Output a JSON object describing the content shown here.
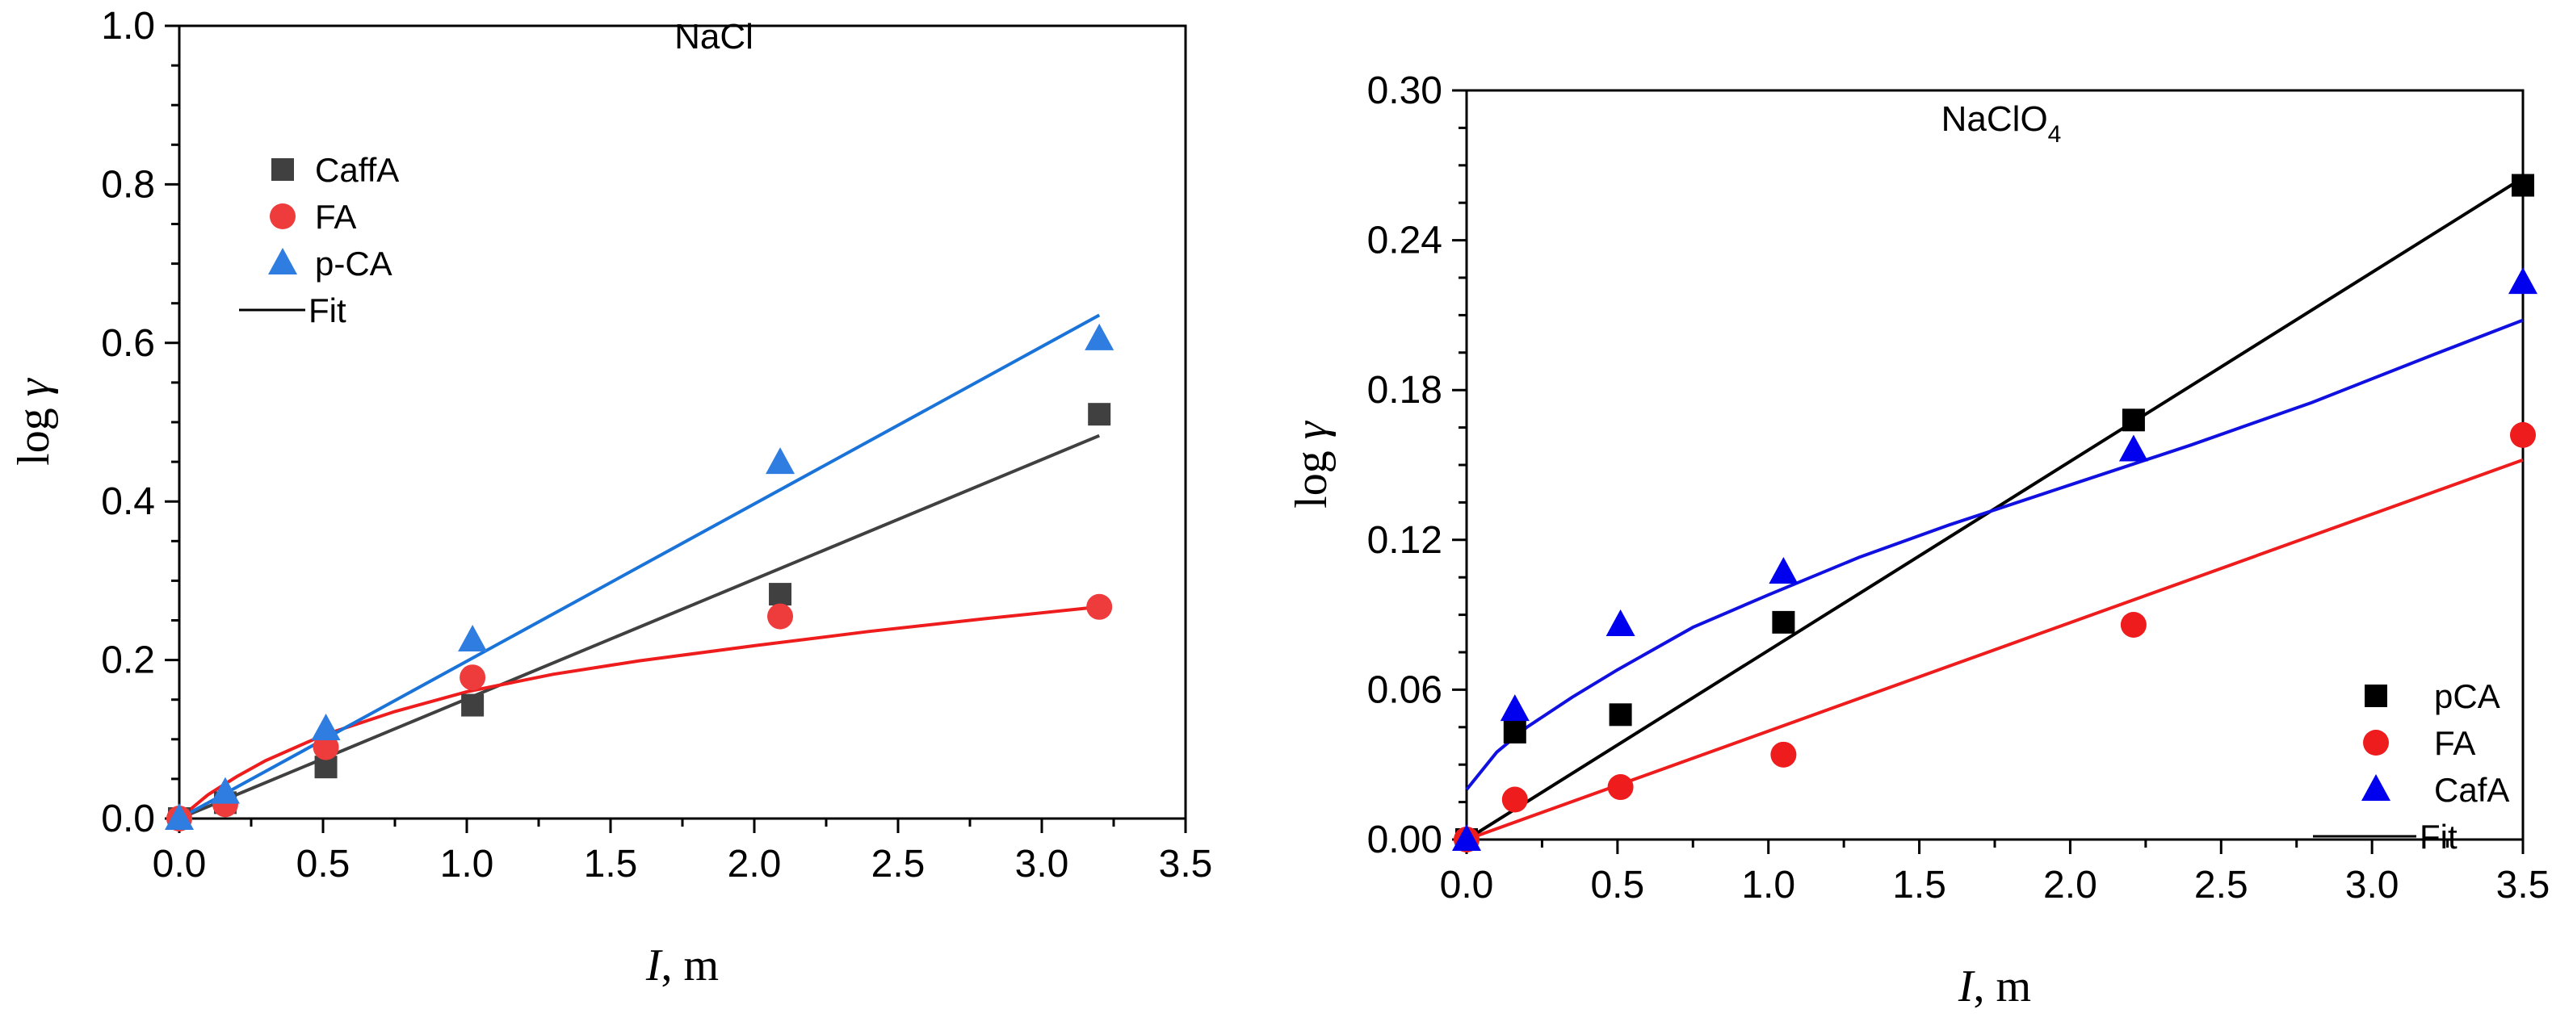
{
  "chart_data": [
    {
      "type": "scatter",
      "title": "NaCl",
      "title_sub": "",
      "xlabel_var": "I",
      "xlabel_rest": ", m",
      "ylabel_prefix": "log ",
      "ylabel_symbol": "γ",
      "xlim": [
        0.0,
        3.5
      ],
      "ylim": [
        0.0,
        1.0
      ],
      "xticks": [
        0.0,
        0.5,
        1.0,
        1.5,
        2.0,
        2.5,
        3.0,
        3.5
      ],
      "xtick_labels": [
        "0.0",
        "0.5",
        "1.0",
        "1.5",
        "2.0",
        "2.5",
        "3.0",
        "3.5"
      ],
      "yticks": [
        0.0,
        0.2,
        0.4,
        0.6,
        0.8,
        1.0
      ],
      "ytick_labels": [
        "0.0",
        "0.2",
        "0.4",
        "0.6",
        "0.8",
        "1.0"
      ],
      "legend_position": "top-left",
      "series": [
        {
          "name": "CaffA",
          "marker": "square",
          "color": "#404040",
          "x": [
            0.0,
            0.16,
            0.51,
            1.02,
            2.09,
            3.2
          ],
          "y": [
            0.0,
            0.02,
            0.065,
            0.143,
            0.283,
            0.51
          ],
          "fit": {
            "kind": "linear",
            "x": [
              0.0,
              3.2
            ],
            "y": [
              0.0,
              0.483
            ],
            "color": "#404040"
          }
        },
        {
          "name": "FA",
          "marker": "circle",
          "color": "#ee3b3b",
          "x": [
            0.0,
            0.16,
            0.51,
            1.02,
            2.09,
            3.2
          ],
          "y": [
            0.0,
            0.018,
            0.09,
            0.178,
            0.255,
            0.267
          ],
          "fit": {
            "kind": "curve",
            "x": [
              0.0,
              0.1,
              0.2,
              0.3,
              0.5,
              0.75,
              1.0,
              1.3,
              1.6,
              2.0,
              2.4,
              2.8,
              3.2
            ],
            "y": [
              0.0,
              0.03,
              0.053,
              0.073,
              0.105,
              0.135,
              0.16,
              0.182,
              0.199,
              0.218,
              0.236,
              0.252,
              0.267
            ],
            "color": "#ee1c1c"
          }
        },
        {
          "name": "p-CA",
          "marker": "triangle",
          "color": "#2f7de1",
          "x": [
            0.0,
            0.16,
            0.51,
            1.02,
            2.09,
            3.2
          ],
          "y": [
            0.0,
            0.033,
            0.113,
            0.225,
            0.449,
            0.605
          ],
          "fit": {
            "kind": "linear",
            "x": [
              0.0,
              3.2
            ],
            "y": [
              0.0,
              0.635
            ],
            "color": "#1a73d9"
          }
        }
      ],
      "fit_legend_label": "Fit"
    },
    {
      "type": "scatter",
      "title": "NaClO",
      "title_sub": "4",
      "xlabel_var": "I",
      "xlabel_rest": ", m",
      "ylabel_prefix": "log ",
      "ylabel_symbol": "γ",
      "xlim": [
        0.0,
        3.5
      ],
      "ylim": [
        0.0,
        0.3
      ],
      "xticks": [
        0.0,
        0.5,
        1.0,
        1.5,
        2.0,
        2.5,
        3.0,
        3.5
      ],
      "xtick_labels": [
        "0.0",
        "0.5",
        "1.0",
        "1.5",
        "2.0",
        "2.5",
        "3.0",
        "3.5"
      ],
      "yticks": [
        0.0,
        0.06,
        0.12,
        0.18,
        0.24,
        0.3
      ],
      "ytick_labels": [
        "0.00",
        "0.06",
        "0.12",
        "0.18",
        "0.24",
        "0.30"
      ],
      "legend_position": "bottom-right",
      "series": [
        {
          "name": "pCA",
          "marker": "square",
          "color": "#000000",
          "x": [
            0.0,
            0.16,
            0.51,
            1.05,
            2.21,
            3.5
          ],
          "y": [
            0.0,
            0.043,
            0.05,
            0.087,
            0.168,
            0.262
          ],
          "fit": {
            "kind": "linear",
            "x": [
              0.0,
              3.5
            ],
            "y": [
              0.0,
              0.265
            ],
            "color": "#000000"
          }
        },
        {
          "name": "FA",
          "marker": "circle",
          "color": "#ee1c1c",
          "x": [
            0.0,
            0.16,
            0.51,
            1.05,
            2.21,
            3.5
          ],
          "y": [
            0.0,
            0.016,
            0.021,
            0.034,
            0.086,
            0.162
          ],
          "fit": {
            "kind": "linear",
            "x": [
              0.0,
              3.5
            ],
            "y": [
              0.0,
              0.152
            ],
            "color": "#ee1c1c"
          }
        },
        {
          "name": "CafA",
          "marker": "triangle",
          "color": "#0000ee",
          "x": [
            0.0,
            0.16,
            0.51,
            1.05,
            2.21,
            3.5
          ],
          "y": [
            0.0,
            0.052,
            0.086,
            0.107,
            0.156,
            0.223
          ],
          "fit": {
            "kind": "curve",
            "x": [
              0.0,
              0.1,
              0.2,
              0.35,
              0.5,
              0.75,
              1.0,
              1.3,
              1.6,
              2.0,
              2.4,
              2.8,
              3.2,
              3.5
            ],
            "y": [
              0.02,
              0.035,
              0.045,
              0.057,
              0.068,
              0.085,
              0.098,
              0.113,
              0.126,
              0.142,
              0.158,
              0.175,
              0.194,
              0.208
            ],
            "color": "#1010e0"
          }
        }
      ],
      "fit_legend_label": "Fit"
    }
  ]
}
